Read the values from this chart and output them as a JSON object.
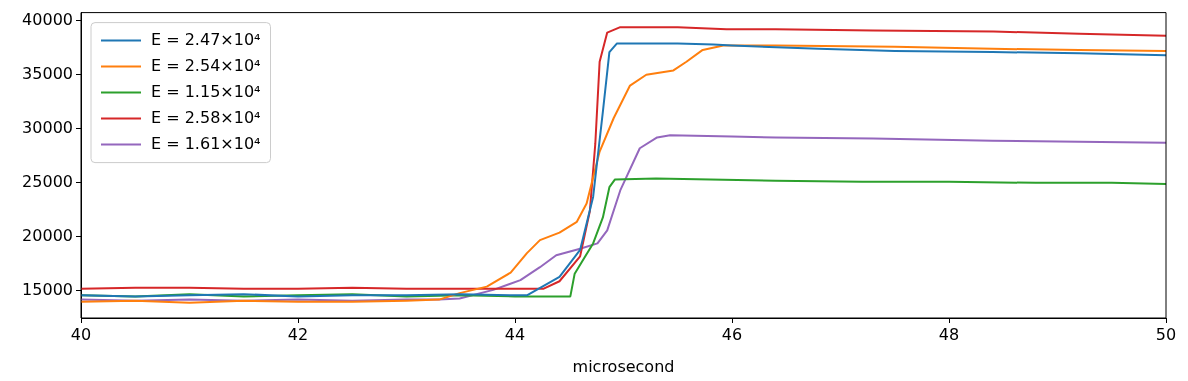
{
  "chart_data": {
    "type": "line",
    "xlabel": "microsecond",
    "xlim": [
      40,
      50
    ],
    "xticks": [
      40,
      42,
      44,
      46,
      48,
      50
    ],
    "ylim": [
      12500,
      40750
    ],
    "yticks": [
      15000,
      20000,
      25000,
      30000,
      35000,
      40000
    ],
    "grid": false,
    "legend": "top left",
    "marker": "none",
    "line_style": "solid",
    "series": [
      {
        "name": "E = 2.47×10⁴",
        "color": "#1f77b4",
        "x": [
          40,
          40.5,
          41,
          41.5,
          42,
          42.5,
          43,
          43.5,
          44,
          44.11,
          44.41,
          44.6,
          44.72,
          44.81,
          44.87,
          44.94,
          45.2,
          45.5,
          45.83,
          46,
          46.8,
          47.5,
          48.4,
          49.2,
          50
        ],
        "values": [
          14600,
          14500,
          14600,
          14700,
          14500,
          14600,
          14600,
          14700,
          14600,
          14600,
          16300,
          18800,
          23700,
          31600,
          37100,
          37900,
          37900,
          37900,
          37800,
          37700,
          37400,
          37200,
          37100,
          37000,
          36800
        ]
      },
      {
        "name": "E = 2.54×10⁴",
        "color": "#ff7f0e",
        "x": [
          40,
          40.5,
          41,
          41.5,
          42,
          42.5,
          43,
          43.3,
          43.49,
          43.74,
          43.96,
          44.11,
          44.23,
          44.41,
          44.57,
          44.66,
          44.78,
          44.91,
          45.06,
          45.21,
          45.46,
          45.58,
          45.73,
          45.92,
          46.4,
          47.5,
          48.4,
          49.2,
          50
        ],
        "values": [
          14000,
          14100,
          13900,
          14100,
          14000,
          14000,
          14100,
          14200,
          14800,
          15400,
          16700,
          18500,
          19700,
          20400,
          21400,
          23100,
          27900,
          31000,
          34000,
          35000,
          35400,
          36200,
          37300,
          37700,
          37700,
          37600,
          37400,
          37300,
          37200
        ]
      },
      {
        "name": "E = 1.15×10⁴",
        "color": "#2ca02c",
        "x": [
          40,
          40.5,
          41,
          41.5,
          42,
          42.5,
          43,
          43.5,
          44,
          44.51,
          44.55,
          44.72,
          44.81,
          44.87,
          44.92,
          45.3,
          45.8,
          46.4,
          47.2,
          48,
          48.8,
          49.5,
          50
        ],
        "values": [
          14600,
          14500,
          14700,
          14500,
          14600,
          14700,
          14500,
          14600,
          14500,
          14500,
          16600,
          19400,
          21800,
          24600,
          25300,
          25400,
          25300,
          25200,
          25100,
          25100,
          25000,
          25000,
          24900
        ]
      },
      {
        "name": "E = 2.58×10⁴",
        "color": "#d62728",
        "x": [
          40,
          40.5,
          41,
          41.5,
          42,
          42.5,
          43,
          43.5,
          44,
          44.26,
          44.41,
          44.6,
          44.69,
          44.74,
          44.78,
          44.85,
          44.97,
          45.5,
          45.95,
          46.4,
          47.3,
          48.41,
          49.2,
          50
        ],
        "values": [
          15200,
          15300,
          15300,
          15200,
          15200,
          15300,
          15200,
          15200,
          15200,
          15200,
          15900,
          18200,
          22400,
          28600,
          36200,
          38900,
          39400,
          39400,
          39200,
          39200,
          39100,
          39000,
          38800,
          38600
        ]
      },
      {
        "name": "E = 1.61×10⁴",
        "color": "#9467bd",
        "x": [
          40,
          40.5,
          41,
          41.5,
          42,
          42.5,
          43,
          43.3,
          43.49,
          43.8,
          44.05,
          44.23,
          44.38,
          44.6,
          44.76,
          44.85,
          44.97,
          45.15,
          45.31,
          45.43,
          46,
          46.4,
          47.3,
          48.4,
          49.2,
          50
        ],
        "values": [
          14200,
          14100,
          14200,
          14100,
          14200,
          14100,
          14200,
          14200,
          14300,
          15100,
          16000,
          17200,
          18300,
          18900,
          19400,
          20600,
          24300,
          28200,
          29200,
          29400,
          29300,
          29200,
          29100,
          28900,
          28800,
          28700
        ]
      }
    ]
  }
}
